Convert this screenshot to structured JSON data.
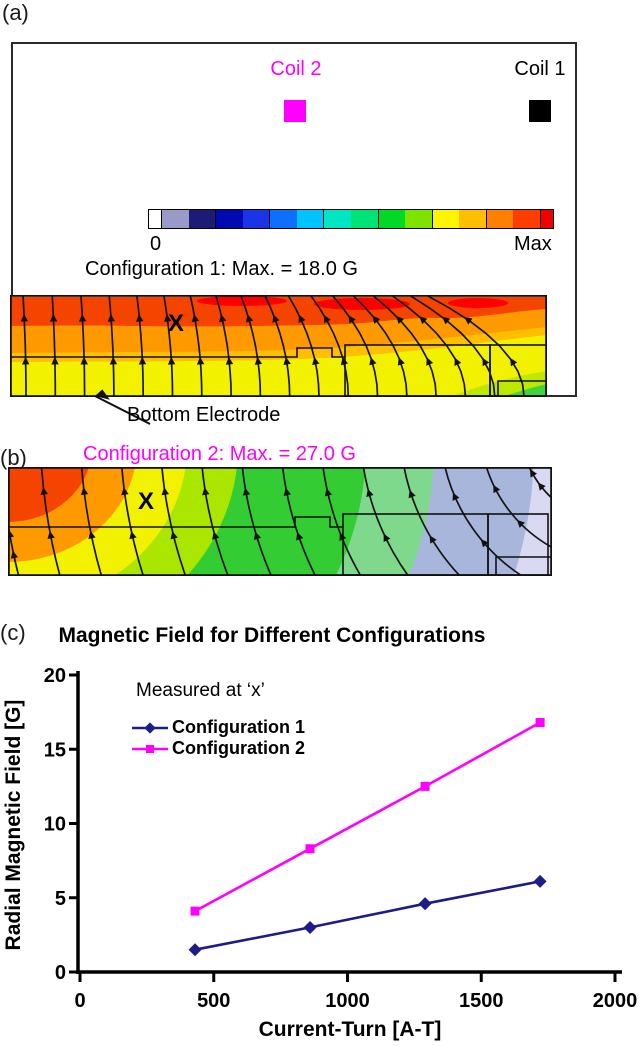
{
  "figure": {
    "panel_a": {
      "tag": "(a)",
      "coil2": {
        "label": "Coil 2",
        "color": "#FF00FF"
      },
      "coil1": {
        "label": "Coil 1",
        "color": "#000000"
      },
      "colorbar": {
        "min_label": "0",
        "max_label": "Max",
        "colors": [
          "#FFFFFF",
          "#9A9AC8",
          "#1C1C74",
          "#0008B0",
          "#1A35E8",
          "#0E6FFF",
          "#00C3FF",
          "#00E6C3",
          "#00E377",
          "#00D926",
          "#7FE300",
          "#FFF500",
          "#FFBE00",
          "#FF8000",
          "#FF3D00",
          "#F00000"
        ]
      },
      "caption": "Configuration 1: Max. = 18.0 G",
      "caption_color": "#000000",
      "max_value": "18.0 G",
      "marker": "X",
      "electrode_label": "Bottom Electrode",
      "bands": [
        "#F44400",
        "#FF9900",
        "#FFBE00",
        "#F2F200",
        "#BFE800",
        "#3FD43F"
      ]
    },
    "panel_b": {
      "tag": "(b)",
      "caption": "Configuration 2: Max. = 27.0 G",
      "caption_color": "#FF00FF",
      "max_value": "27.0 G",
      "marker": "X",
      "bands": [
        "#F44400",
        "#FF9900",
        "#F2F200",
        "#AAE600",
        "#33CC33",
        "#7FD98C",
        "#A9B6DC",
        "#D9D9F2"
      ]
    },
    "panel_c": {
      "tag": "(c)"
    }
  },
  "chart_data": {
    "type": "line",
    "title": "Magnetic Field for Different Configurations",
    "xlabel": "Current-Turn [A-T]",
    "ylabel": "Radial Magnetic Field [G]",
    "xlim": [
      0,
      2000
    ],
    "ylim": [
      0,
      20
    ],
    "x_ticks": [
      0,
      500,
      1000,
      1500,
      2000
    ],
    "y_ticks": [
      0,
      5,
      10,
      15,
      20
    ],
    "annotation": "Measured at ‘x’",
    "grid": false,
    "legend_position": "upper-left-inside",
    "x": [
      430,
      860,
      1290,
      1720
    ],
    "series": [
      {
        "name": "Configuration 1",
        "color": "#1C1C8A",
        "marker": "diamond",
        "values": [
          1.5,
          3.0,
          4.6,
          6.1
        ]
      },
      {
        "name": "Configuration 2",
        "color": "#FF00FF",
        "marker": "square",
        "values": [
          4.1,
          8.3,
          12.5,
          16.8
        ]
      }
    ]
  }
}
